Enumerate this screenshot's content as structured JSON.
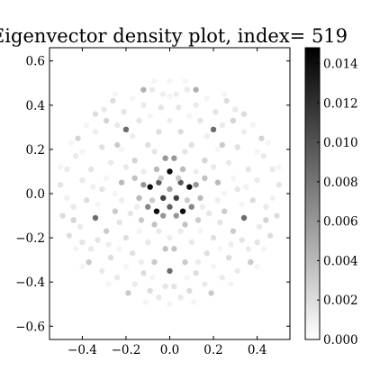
{
  "chart_data": {
    "type": "scatter",
    "title": "Eigenvector density plot, index= 519",
    "xlabel": "",
    "ylabel": "",
    "xlim": [
      -0.55,
      0.55
    ],
    "ylim": [
      -0.66,
      0.66
    ],
    "x_ticks": [
      -0.4,
      -0.2,
      0.0,
      0.2,
      0.4
    ],
    "x_tick_labels": [
      "−0.4",
      "−0.2",
      "0.0",
      "0.2",
      "0.4"
    ],
    "y_ticks": [
      -0.6,
      -0.4,
      -0.2,
      0.0,
      0.2,
      0.4,
      0.6
    ],
    "y_tick_labels": [
      "−0.6",
      "−0.4",
      "−0.2",
      "0.0",
      "0.2",
      "0.4",
      "0.6"
    ],
    "grid": false,
    "colorbar": {
      "min": 0.0,
      "max": 0.0148,
      "ticks": [
        0.0,
        0.002,
        0.004,
        0.006,
        0.008,
        0.01,
        0.012,
        0.014
      ],
      "tick_labels": [
        "0.000",
        "0.002",
        "0.004",
        "0.006",
        "0.008",
        "0.010",
        "0.012",
        "0.014"
      ],
      "colormap": "Greys",
      "color_low": "#ffffff",
      "color_high": "#000000"
    },
    "points": [
      {
        "x": 0.0,
        "y": 0.1,
        "v": 0.014
      },
      {
        "x": -0.09,
        "y": 0.03,
        "v": 0.014
      },
      {
        "x": 0.09,
        "y": 0.03,
        "v": 0.014
      },
      {
        "x": -0.06,
        "y": -0.08,
        "v": 0.014
      },
      {
        "x": 0.06,
        "y": -0.08,
        "v": 0.014
      },
      {
        "x": -0.05,
        "y": 0.05,
        "v": 0.0095
      },
      {
        "x": 0.05,
        "y": 0.05,
        "v": 0.0095
      },
      {
        "x": -0.03,
        "y": -0.02,
        "v": 0.011
      },
      {
        "x": 0.03,
        "y": -0.02,
        "v": 0.011
      },
      {
        "x": 0.0,
        "y": -0.06,
        "v": 0.009
      },
      {
        "x": -0.02,
        "y": 0.16,
        "v": 0.006
      },
      {
        "x": 0.02,
        "y": 0.16,
        "v": 0.006
      },
      {
        "x": -0.12,
        "y": 0.04,
        "v": 0.006
      },
      {
        "x": 0.12,
        "y": 0.04,
        "v": 0.006
      },
      {
        "x": -0.1,
        "y": -0.06,
        "v": 0.007
      },
      {
        "x": 0.1,
        "y": -0.06,
        "v": 0.007
      },
      {
        "x": -0.03,
        "y": -0.1,
        "v": 0.006
      },
      {
        "x": 0.03,
        "y": -0.1,
        "v": 0.006
      },
      {
        "x": 0.0,
        "y": 0.02,
        "v": 0.005
      },
      {
        "x": -0.06,
        "y": 0.11,
        "v": 0.004
      },
      {
        "x": 0.06,
        "y": 0.11,
        "v": 0.004
      },
      {
        "x": -0.14,
        "y": -0.02,
        "v": 0.004
      },
      {
        "x": 0.14,
        "y": -0.02,
        "v": 0.004
      },
      {
        "x": -0.07,
        "y": -0.14,
        "v": 0.0035
      },
      {
        "x": 0.07,
        "y": -0.14,
        "v": 0.0035
      },
      {
        "x": -0.16,
        "y": 0.07,
        "v": 0.0035
      },
      {
        "x": 0.16,
        "y": 0.07,
        "v": 0.0035
      },
      {
        "x": -0.04,
        "y": 0.07,
        "v": 0.003
      },
      {
        "x": 0.04,
        "y": 0.07,
        "v": 0.003
      },
      {
        "x": -0.08,
        "y": -0.03,
        "v": 0.003
      },
      {
        "x": 0.08,
        "y": -0.03,
        "v": 0.003
      },
      {
        "x": -0.2,
        "y": 0.29,
        "v": 0.0085
      },
      {
        "x": 0.2,
        "y": 0.29,
        "v": 0.0085
      },
      {
        "x": -0.34,
        "y": -0.11,
        "v": 0.0085
      },
      {
        "x": 0.34,
        "y": -0.11,
        "v": 0.0085
      },
      {
        "x": 0.0,
        "y": -0.35,
        "v": 0.0085
      },
      {
        "x": -0.12,
        "y": 0.47,
        "v": 0.0045
      },
      {
        "x": 0.12,
        "y": 0.47,
        "v": 0.0045
      },
      {
        "x": -0.42,
        "y": 0.25,
        "v": 0.0025
      },
      {
        "x": 0.42,
        "y": 0.25,
        "v": 0.0025
      },
      {
        "x": -0.44,
        "y": -0.12,
        "v": 0.0025
      },
      {
        "x": 0.44,
        "y": -0.12,
        "v": 0.0025
      },
      {
        "x": -0.37,
        "y": -0.31,
        "v": 0.003
      },
      {
        "x": 0.37,
        "y": -0.31,
        "v": 0.003
      },
      {
        "x": -0.19,
        "y": -0.45,
        "v": 0.003
      },
      {
        "x": 0.19,
        "y": -0.45,
        "v": 0.003
      },
      {
        "x": -0.02,
        "y": -0.25,
        "v": 0.0035
      },
      {
        "x": 0.02,
        "y": -0.25,
        "v": 0.0035
      },
      {
        "x": -0.07,
        "y": -0.31,
        "v": 0.003
      },
      {
        "x": 0.07,
        "y": -0.31,
        "v": 0.003
      },
      {
        "x": -0.24,
        "y": 0.22,
        "v": 0.003
      },
      {
        "x": 0.24,
        "y": 0.22,
        "v": 0.003
      },
      {
        "x": -0.29,
        "y": 0.33,
        "v": 0.0025
      },
      {
        "x": 0.29,
        "y": 0.33,
        "v": 0.0025
      },
      {
        "x": -0.22,
        "y": 0.05,
        "v": 0.004
      },
      {
        "x": 0.22,
        "y": 0.05,
        "v": 0.004
      },
      {
        "x": -0.25,
        "y": -0.08,
        "v": 0.003
      },
      {
        "x": 0.25,
        "y": -0.08,
        "v": 0.003
      },
      {
        "x": -0.29,
        "y": -0.17,
        "v": 0.003
      },
      {
        "x": 0.29,
        "y": -0.17,
        "v": 0.003
      },
      {
        "x": -0.13,
        "y": -0.12,
        "v": 0.003
      },
      {
        "x": 0.13,
        "y": -0.12,
        "v": 0.003
      },
      {
        "x": -0.16,
        "y": 0.15,
        "v": 0.0025
      },
      {
        "x": 0.16,
        "y": 0.15,
        "v": 0.0025
      },
      {
        "x": -0.34,
        "y": 0.36,
        "v": 0.002
      },
      {
        "x": 0.34,
        "y": 0.36,
        "v": 0.002
      },
      {
        "x": -0.26,
        "y": 0.42,
        "v": 0.002
      },
      {
        "x": 0.26,
        "y": 0.42,
        "v": 0.002
      },
      {
        "x": -0.05,
        "y": 0.28,
        "v": 0.002
      },
      {
        "x": 0.05,
        "y": 0.28,
        "v": 0.002
      },
      {
        "x": -0.38,
        "y": -0.03,
        "v": 0.002
      },
      {
        "x": 0.38,
        "y": -0.03,
        "v": 0.002
      },
      {
        "x": -0.46,
        "y": -0.19,
        "v": 0.002
      },
      {
        "x": 0.46,
        "y": -0.19,
        "v": 0.002
      },
      {
        "x": -0.27,
        "y": -0.29,
        "v": 0.002
      },
      {
        "x": 0.27,
        "y": -0.29,
        "v": 0.002
      },
      {
        "x": -0.12,
        "y": -0.36,
        "v": 0.002
      },
      {
        "x": 0.12,
        "y": -0.36,
        "v": 0.002
      },
      {
        "x": -0.09,
        "y": -0.44,
        "v": 0.002
      },
      {
        "x": 0.09,
        "y": -0.44,
        "v": 0.002
      },
      {
        "x": -0.31,
        "y": 0.21,
        "v": 0.0018
      },
      {
        "x": 0.31,
        "y": 0.21,
        "v": 0.0018
      },
      {
        "x": -0.2,
        "y": -0.2,
        "v": 0.0018
      },
      {
        "x": 0.2,
        "y": -0.2,
        "v": 0.0018
      },
      {
        "x": -0.1,
        "y": 0.22,
        "v": 0.0018
      },
      {
        "x": 0.1,
        "y": 0.22,
        "v": 0.0018
      },
      {
        "x": -0.17,
        "y": -0.27,
        "v": 0.0018
      },
      {
        "x": 0.17,
        "y": -0.27,
        "v": 0.0018
      },
      {
        "x": -0.49,
        "y": -0.1,
        "v": 0.002
      },
      {
        "x": 0.49,
        "y": -0.1,
        "v": 0.002
      },
      {
        "x": -0.5,
        "y": 0.04,
        "v": 0.0015
      },
      {
        "x": 0.5,
        "y": 0.04,
        "v": 0.0015
      },
      {
        "x": -0.18,
        "y": -0.09,
        "v": 0.0015
      },
      {
        "x": 0.18,
        "y": -0.09,
        "v": 0.0015
      },
      {
        "x": -0.23,
        "y": -0.13,
        "v": 0.0015
      },
      {
        "x": 0.23,
        "y": -0.13,
        "v": 0.0015
      },
      {
        "x": -0.33,
        "y": -0.21,
        "v": 0.0015
      },
      {
        "x": 0.33,
        "y": -0.21,
        "v": 0.0015
      },
      {
        "x": -0.36,
        "y": 0.11,
        "v": 0.0015
      },
      {
        "x": 0.36,
        "y": 0.11,
        "v": 0.0015
      },
      {
        "x": -0.04,
        "y": 0.39,
        "v": 0.0015
      },
      {
        "x": 0.04,
        "y": 0.39,
        "v": 0.0015
      },
      {
        "x": -0.14,
        "y": 0.33,
        "v": 0.0015
      },
      {
        "x": 0.14,
        "y": 0.33,
        "v": 0.0015
      },
      {
        "x": -0.02,
        "y": -0.42,
        "v": 0.0015
      },
      {
        "x": 0.02,
        "y": -0.42,
        "v": 0.0015
      },
      {
        "x": -0.4,
        "y": -0.22,
        "v": 0.0015
      },
      {
        "x": 0.4,
        "y": -0.22,
        "v": 0.0015
      },
      {
        "x": -0.31,
        "y": 0.02,
        "v": 0.0015
      },
      {
        "x": 0.31,
        "y": 0.02,
        "v": 0.0015
      },
      {
        "x": -0.21,
        "y": 0.37,
        "v": 0.0015
      },
      {
        "x": 0.21,
        "y": 0.37,
        "v": 0.0015
      },
      {
        "x": -0.07,
        "y": 0.19,
        "v": 0.0015
      },
      {
        "x": 0.07,
        "y": 0.19,
        "v": 0.0015
      },
      {
        "x": -0.3,
        "y": 0.38,
        "v": 0.0012
      },
      {
        "x": 0.3,
        "y": 0.38,
        "v": 0.0012
      },
      {
        "x": -0.24,
        "y": 0.31,
        "v": 0.0012
      },
      {
        "x": 0.24,
        "y": 0.31,
        "v": 0.0012
      },
      {
        "x": -0.12,
        "y": 0.4,
        "v": 0.0012
      },
      {
        "x": 0.12,
        "y": 0.4,
        "v": 0.0012
      },
      {
        "x": -0.08,
        "y": 0.47,
        "v": 0.0012
      },
      {
        "x": 0.08,
        "y": 0.47,
        "v": 0.0012
      },
      {
        "x": -0.03,
        "y": 0.45,
        "v": 0.001
      },
      {
        "x": 0.03,
        "y": 0.45,
        "v": 0.001
      },
      {
        "x": -0.43,
        "y": 0.17,
        "v": 0.0012
      },
      {
        "x": 0.43,
        "y": 0.17,
        "v": 0.0012
      },
      {
        "x": -0.47,
        "y": 0.11,
        "v": 0.0012
      },
      {
        "x": 0.47,
        "y": 0.11,
        "v": 0.0012
      },
      {
        "x": -0.4,
        "y": 0.06,
        "v": 0.0012
      },
      {
        "x": 0.4,
        "y": 0.06,
        "v": 0.0012
      },
      {
        "x": -0.27,
        "y": 0.14,
        "v": 0.0012
      },
      {
        "x": 0.27,
        "y": 0.14,
        "v": 0.0012
      },
      {
        "x": -0.2,
        "y": 0.12,
        "v": 0.0012
      },
      {
        "x": 0.2,
        "y": 0.12,
        "v": 0.0012
      },
      {
        "x": -0.44,
        "y": -0.06,
        "v": 0.0012
      },
      {
        "x": 0.44,
        "y": -0.06,
        "v": 0.0012
      },
      {
        "x": -0.41,
        "y": -0.15,
        "v": 0.0012
      },
      {
        "x": 0.41,
        "y": -0.15,
        "v": 0.0012
      },
      {
        "x": -0.36,
        "y": -0.25,
        "v": 0.0012
      },
      {
        "x": 0.36,
        "y": -0.25,
        "v": 0.0012
      },
      {
        "x": -0.31,
        "y": -0.35,
        "v": 0.0012
      },
      {
        "x": 0.31,
        "y": -0.35,
        "v": 0.0012
      },
      {
        "x": -0.24,
        "y": -0.38,
        "v": 0.0012
      },
      {
        "x": 0.24,
        "y": -0.38,
        "v": 0.0012
      },
      {
        "x": -0.16,
        "y": -0.41,
        "v": 0.0012
      },
      {
        "x": 0.16,
        "y": -0.41,
        "v": 0.0012
      },
      {
        "x": -0.05,
        "y": -0.47,
        "v": 0.0012
      },
      {
        "x": 0.05,
        "y": -0.47,
        "v": 0.0012
      },
      {
        "x": -0.1,
        "y": -0.22,
        "v": 0.0012
      },
      {
        "x": 0.1,
        "y": -0.22,
        "v": 0.0012
      },
      {
        "x": -0.05,
        "y": -0.17,
        "v": 0.0012
      },
      {
        "x": 0.05,
        "y": -0.17,
        "v": 0.0012
      },
      {
        "x": -0.22,
        "y": -0.03,
        "v": 0.001
      },
      {
        "x": 0.22,
        "y": -0.03,
        "v": 0.001
      },
      {
        "x": -0.28,
        "y": -0.23,
        "v": 0.001
      },
      {
        "x": 0.28,
        "y": -0.23,
        "v": 0.001
      },
      {
        "x": -0.13,
        "y": -0.31,
        "v": 0.001
      },
      {
        "x": 0.13,
        "y": -0.31,
        "v": 0.001
      },
      {
        "x": -0.34,
        "y": 0.28,
        "v": 0.001
      },
      {
        "x": 0.34,
        "y": 0.28,
        "v": 0.001
      },
      {
        "x": -0.17,
        "y": 0.26,
        "v": 0.001
      },
      {
        "x": 0.17,
        "y": 0.26,
        "v": 0.001
      },
      {
        "x": 0.0,
        "y": 0.33,
        "v": 0.001
      },
      {
        "x": 0.0,
        "y": -0.2,
        "v": 0.001
      },
      {
        "x": -0.12,
        "y": 0.1,
        "v": 0.001
      },
      {
        "x": 0.12,
        "y": 0.1,
        "v": 0.001
      },
      {
        "x": -0.15,
        "y": -0.06,
        "v": 0.001
      },
      {
        "x": 0.15,
        "y": -0.06,
        "v": 0.001
      },
      {
        "x": -0.35,
        "y": 0.03,
        "v": 0.0008
      },
      {
        "x": 0.35,
        "y": 0.03,
        "v": 0.0008
      },
      {
        "x": -0.47,
        "y": -0.02,
        "v": 0.0008
      },
      {
        "x": 0.47,
        "y": -0.02,
        "v": 0.0008
      },
      {
        "x": -0.5,
        "y": 0.12,
        "v": 0.0006
      },
      {
        "x": 0.5,
        "y": 0.12,
        "v": 0.0006
      },
      {
        "x": -0.45,
        "y": 0.23,
        "v": 0.0006
      },
      {
        "x": 0.45,
        "y": 0.23,
        "v": 0.0006
      },
      {
        "x": -0.38,
        "y": 0.31,
        "v": 0.0006
      },
      {
        "x": 0.38,
        "y": 0.31,
        "v": 0.0006
      },
      {
        "x": -0.25,
        "y": 0.45,
        "v": 0.0006
      },
      {
        "x": 0.25,
        "y": 0.45,
        "v": 0.0006
      },
      {
        "x": -0.17,
        "y": 0.43,
        "v": 0.0006
      },
      {
        "x": 0.17,
        "y": 0.43,
        "v": 0.0006
      },
      {
        "x": -0.07,
        "y": 0.51,
        "v": 0.0006
      },
      {
        "x": 0.07,
        "y": 0.51,
        "v": 0.0006
      },
      {
        "x": -0.43,
        "y": -0.25,
        "v": 0.0006
      },
      {
        "x": 0.43,
        "y": -0.25,
        "v": 0.0006
      },
      {
        "x": -0.4,
        "y": -0.33,
        "v": 0.0006
      },
      {
        "x": 0.4,
        "y": -0.33,
        "v": 0.0006
      },
      {
        "x": -0.28,
        "y": -0.41,
        "v": 0.0006
      },
      {
        "x": 0.28,
        "y": -0.41,
        "v": 0.0006
      },
      {
        "x": -0.11,
        "y": -0.49,
        "v": 0.0006
      },
      {
        "x": 0.11,
        "y": -0.49,
        "v": 0.0006
      },
      {
        "x": 0.0,
        "y": -0.5,
        "v": 0.0006
      },
      {
        "x": -0.2,
        "y": -0.33,
        "v": 0.0006
      },
      {
        "x": 0.2,
        "y": -0.33,
        "v": 0.0006
      },
      {
        "x": -0.08,
        "y": -0.38,
        "v": 0.0006
      },
      {
        "x": 0.08,
        "y": -0.38,
        "v": 0.0006
      },
      {
        "x": -0.25,
        "y": 0.0,
        "v": 0.0006
      },
      {
        "x": 0.25,
        "y": 0.0,
        "v": 0.0006
      },
      {
        "x": -0.29,
        "y": 0.07,
        "v": 0.0006
      },
      {
        "x": 0.29,
        "y": 0.07,
        "v": 0.0006
      },
      {
        "x": -0.4,
        "y": 0.19,
        "v": 0.0006
      },
      {
        "x": 0.4,
        "y": 0.19,
        "v": 0.0006
      },
      {
        "x": -0.09,
        "y": 0.35,
        "v": 0.0006
      },
      {
        "x": 0.09,
        "y": 0.35,
        "v": 0.0006
      },
      {
        "x": -0.14,
        "y": -0.17,
        "v": 0.0006
      },
      {
        "x": 0.14,
        "y": -0.17,
        "v": 0.0006
      },
      {
        "x": -0.23,
        "y": -0.25,
        "v": 0.0006
      },
      {
        "x": 0.23,
        "y": -0.25,
        "v": 0.0006
      },
      {
        "x": -0.33,
        "y": -0.05,
        "v": 0.0006
      },
      {
        "x": 0.33,
        "y": -0.05,
        "v": 0.0006
      },
      {
        "x": 0.0,
        "y": 0.51,
        "v": 0.0006
      },
      {
        "x": 0.0,
        "y": 0.44,
        "v": 0.0006
      },
      {
        "x": -0.22,
        "y": 0.2,
        "v": 0.0006
      },
      {
        "x": 0.22,
        "y": 0.2,
        "v": 0.0006
      }
    ]
  }
}
